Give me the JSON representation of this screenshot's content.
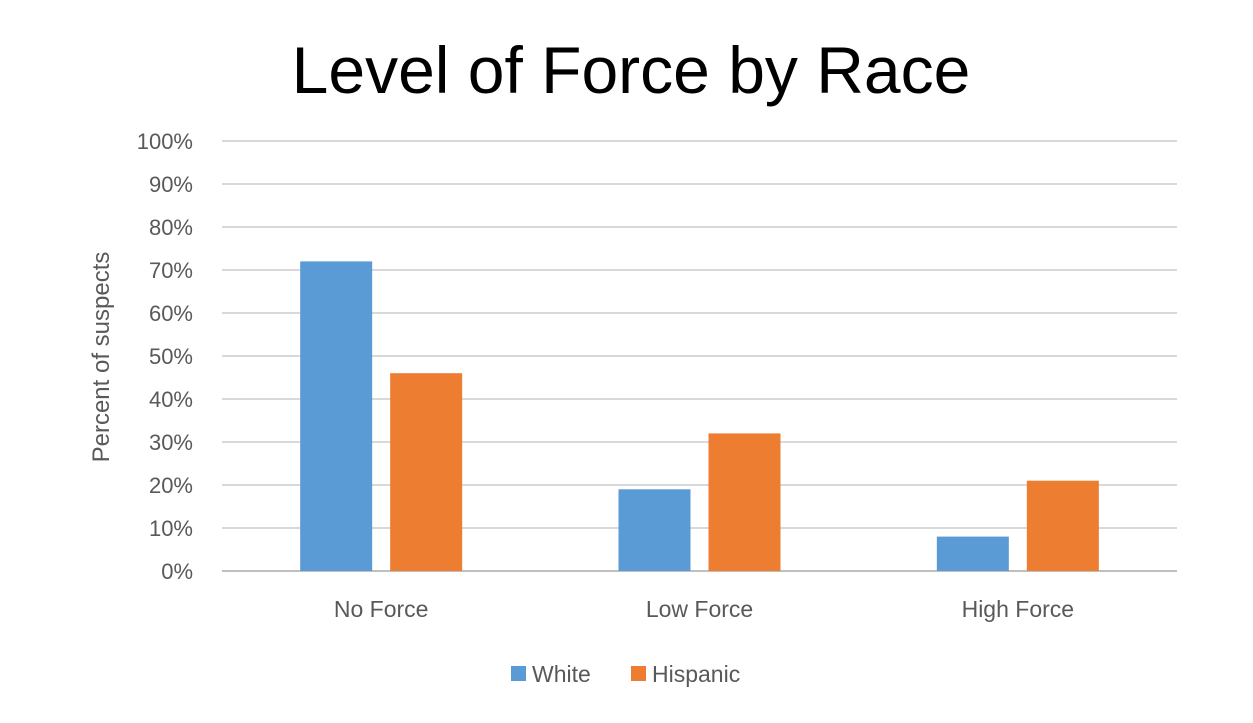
{
  "chart_data": {
    "type": "bar",
    "title": "Level of Force by Race",
    "xlabel": "",
    "ylabel": "Percent of suspects",
    "categories": [
      "No Force",
      "Low Force",
      "High Force"
    ],
    "series": [
      {
        "name": "White",
        "color": "#5B9BD5",
        "values": [
          72,
          19,
          8
        ]
      },
      {
        "name": "Hispanic",
        "color": "#ED7D31",
        "values": [
          46,
          32,
          21
        ]
      }
    ],
    "ylim": [
      0,
      100
    ],
    "yticks": [
      "0%",
      "10%",
      "20%",
      "30%",
      "40%",
      "50%",
      "60%",
      "70%",
      "80%",
      "90%",
      "100%"
    ],
    "grid": true,
    "legend": "bottom-center"
  }
}
